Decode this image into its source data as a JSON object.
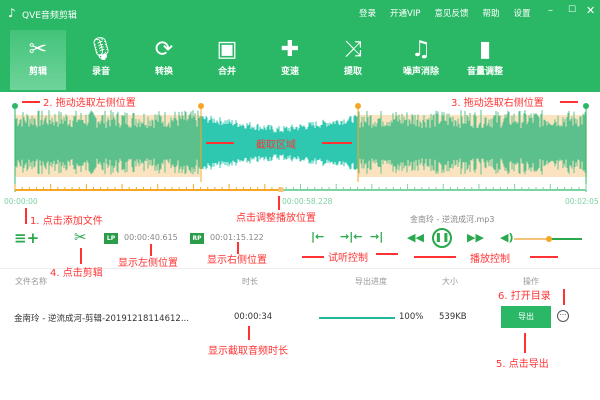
{
  "app": {
    "title": "QVE音频剪辑",
    "icon": "music-note-icon"
  },
  "menu": [
    "登录",
    "开通VIP",
    "意见反馈",
    "帮助",
    "设置"
  ],
  "window_controls": [
    "minimize",
    "maximize",
    "close"
  ],
  "tabs": [
    {
      "label": "剪辑",
      "icon": "scissors-icon",
      "active": true
    },
    {
      "label": "录音",
      "icon": "microphone-icon"
    },
    {
      "label": "转换",
      "icon": "refresh-icon"
    },
    {
      "label": "合并",
      "icon": "merge-icon"
    },
    {
      "label": "变速",
      "icon": "gamepad-icon"
    },
    {
      "label": "提取",
      "icon": "shuffle-icon"
    },
    {
      "label": "噪声消除",
      "icon": "music-list-icon"
    },
    {
      "label": "音量调整",
      "icon": "bar-chart-icon"
    }
  ],
  "timeline": {
    "start": "00:00:00",
    "current": "00:00:58.228",
    "end": "00:02:05",
    "selection_start_fraction": 0.325,
    "selection_end_fraction": 0.6,
    "playhead_fraction": 0.465
  },
  "file_name": "金南玲 - 逆流成河.mp3",
  "controls": {
    "lp": "LP",
    "left_pos": "00:00:40.615",
    "rp": "RP",
    "right_pos": "00:01:15.122",
    "volume_fraction": 0.5
  },
  "table": {
    "headers": [
      "文件名称",
      "时长",
      "导出进度",
      "大小",
      "操作"
    ],
    "rows": [
      {
        "name": "金南玲 - 逆流成河-剪辑-20191218114612...",
        "duration": "00:00:34",
        "progress": "100%",
        "progress_value": 100,
        "size": "539KB",
        "action": "导出"
      }
    ]
  },
  "annotations": {
    "a1": "1. 点击添加文件",
    "a2": "2. 拖动选取左侧位置",
    "a3": "3. 拖动选取右侧位置",
    "a4": "4. 点击剪辑",
    "a5": "5. 点击导出",
    "a6": "6. 打开目录",
    "region": "截取区域",
    "playpos": "点击调整播放位置",
    "leftpos": "显示左侧位置",
    "rightpos": "显示右侧位置",
    "preview": "试听控制",
    "playback": "播放控制",
    "duration": "显示截取音频时长"
  },
  "colors": {
    "brand": "#2bb866",
    "selection": "#fbe3c0",
    "wave": "#5cc08c",
    "wave_selected": "#2ec8b0",
    "handle": "#f5a623",
    "annotation": "#ff3333"
  }
}
